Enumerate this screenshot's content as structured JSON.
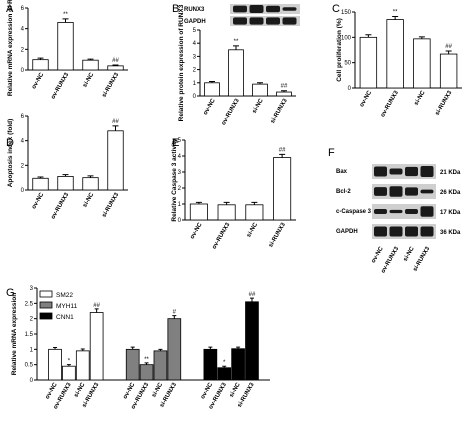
{
  "colors": {
    "white_bar": "#ffffff",
    "gray_bar": "#808080",
    "black_bar": "#000000",
    "blot_bg": "#cfcfcf",
    "band": "#1a1a1a"
  },
  "chart_data": [
    {
      "panel": "A",
      "type": "bar",
      "ylabel": "Relative mRNA expression of RUNX3",
      "categories": [
        "ov-NC",
        "ov-RUNX3",
        "si-NC",
        "si-RUNX3"
      ],
      "values": [
        1.0,
        4.6,
        0.95,
        0.4
      ],
      "errors": [
        0.15,
        0.35,
        0.1,
        0.08
      ],
      "annotations": [
        "",
        "**",
        "",
        "##"
      ],
      "ylim": [
        0,
        6
      ],
      "yticks": [
        0,
        2,
        4,
        6
      ]
    },
    {
      "panel": "B",
      "type": "bar",
      "ylabel": "Relative protein expression of RUNX3",
      "categories": [
        "ov-NC",
        "ov-RUNX3",
        "si-NC",
        "si-RUNX3"
      ],
      "values": [
        1.0,
        3.5,
        0.9,
        0.3
      ],
      "errors": [
        0.1,
        0.3,
        0.1,
        0.1
      ],
      "annotations": [
        "",
        "**",
        "",
        "##"
      ],
      "ylim": [
        0,
        5
      ],
      "yticks": [
        0,
        1,
        2,
        3,
        4,
        5
      ],
      "blot_labels": [
        "RUNX3",
        "GAPDH"
      ]
    },
    {
      "panel": "C",
      "type": "bar",
      "ylabel": "Cell proliferation (%)",
      "categories": [
        "ov-NC",
        "ov-RUNX3",
        "si-NC",
        "si-RUNX3"
      ],
      "values": [
        100,
        135,
        97,
        67
      ],
      "errors": [
        5,
        6,
        4,
        6
      ],
      "annotations": [
        "",
        "**",
        "",
        "##"
      ],
      "ylim": [
        0,
        150
      ],
      "yticks": [
        0,
        50,
        100,
        150
      ]
    },
    {
      "panel": "D",
      "type": "bar",
      "ylabel": "Apoptosis index (fold)",
      "categories": [
        "ov-NC",
        "ov-RUNX3",
        "si-NC",
        "si-RUNX3"
      ],
      "values": [
        0.95,
        1.1,
        1.0,
        4.8
      ],
      "errors": [
        0.1,
        0.15,
        0.15,
        0.4
      ],
      "annotations": [
        "",
        "",
        "",
        "##"
      ],
      "ylim": [
        0,
        6
      ],
      "yticks": [
        0,
        2,
        4,
        6
      ]
    },
    {
      "panel": "E",
      "type": "bar",
      "ylabel": "Relative Caspase 3 activity",
      "categories": [
        "ov-NC",
        "ov-RUNX3",
        "si-NC",
        "si-RUNX3"
      ],
      "values": [
        1.0,
        0.95,
        0.95,
        3.9
      ],
      "errors": [
        0.1,
        0.15,
        0.15,
        0.2
      ],
      "annotations": [
        "",
        "",
        "",
        "##"
      ],
      "ylim": [
        0,
        5
      ],
      "yticks": [
        0,
        1,
        2,
        3,
        4,
        5
      ]
    },
    {
      "panel": "G",
      "type": "bar",
      "ylabel": "Relative mRNA expression",
      "categories": [
        "ov-NC",
        "ov-RUNX3",
        "si-NC",
        "si-RUNX3"
      ],
      "series": [
        {
          "name": "SM22",
          "values": [
            1.0,
            0.45,
            0.95,
            2.2
          ],
          "errors": [
            0.06,
            0.05,
            0.06,
            0.12
          ],
          "annotations": [
            "",
            "*",
            "",
            "##"
          ]
        },
        {
          "name": "MYH11",
          "values": [
            1.0,
            0.5,
            0.95,
            2.0
          ],
          "errors": [
            0.07,
            0.06,
            0.05,
            0.1
          ],
          "annotations": [
            "",
            "**",
            "",
            "#"
          ]
        },
        {
          "name": "CNN1",
          "values": [
            1.0,
            0.4,
            1.02,
            2.55
          ],
          "errors": [
            0.07,
            0.05,
            0.05,
            0.12
          ],
          "annotations": [
            "",
            "*",
            "",
            "##"
          ]
        }
      ],
      "ylim": [
        0,
        3
      ],
      "yticks": [
        0.0,
        0.5,
        1.0,
        1.5,
        2.0,
        2.5,
        3.0
      ],
      "legend": "top-left"
    }
  ],
  "blot_F": {
    "panel": "F",
    "rows": [
      {
        "label": "Bax",
        "kda": "21 KDa"
      },
      {
        "label": "Bcl-2",
        "kda": "26 KDa"
      },
      {
        "label": "c-Caspase 3",
        "kda": "17 KDa"
      },
      {
        "label": "GAPDH",
        "kda": "36 KDa"
      }
    ],
    "lanes": [
      "ov-NC",
      "ov-RUNX3",
      "si-NC",
      "si-RUNX3"
    ]
  }
}
